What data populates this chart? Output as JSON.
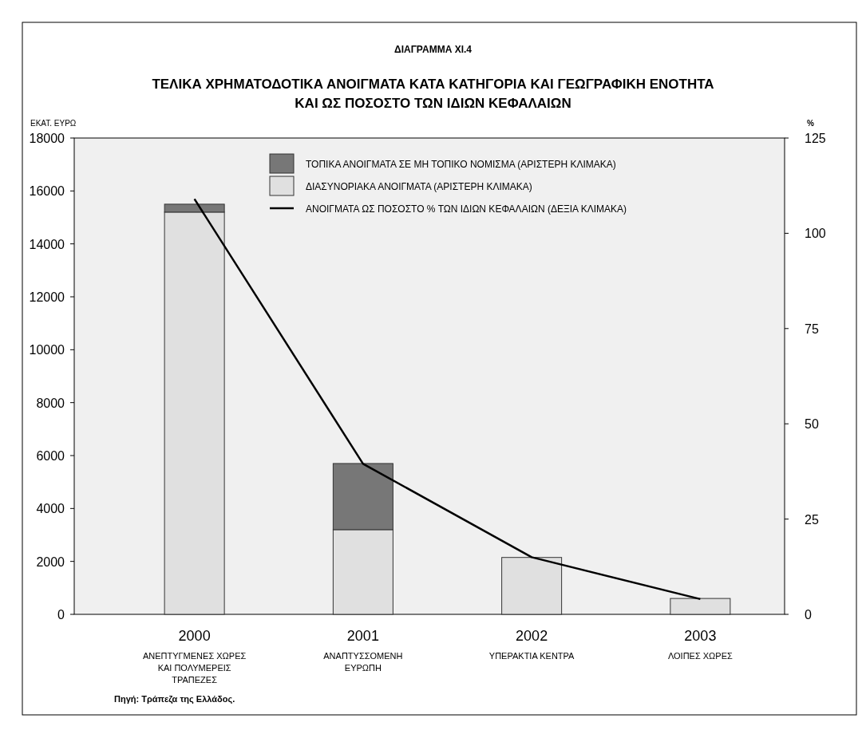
{
  "chart_data": {
    "type": "bar",
    "subtitle": "ΔΙΑΓΡΑΜΜΑ XI.4",
    "title": "ΤΕΛΙΚΑ ΧΡΗΜΑΤΟΔΟΤΙΚΑ ΑΝΟΙΓΜΑΤΑ ΚΑΤΑ ΚΑΤΗΓΟΡΙΑ ΚΑΙ ΓΕΩΓΡΑΦΙΚΗ ΕΝΟΤΗΤΑ\nΚΑΙ ΩΣ ΠΟΣΟΣΤΟ ΤΩΝ ΙΔΙΩΝ ΚΕΦΑΛΑΙΩΝ",
    "ylabel": "ΕΚΑΤ. ΕΥΡΩ",
    "y2label": "%",
    "categories": [
      "2000\nΑΝΕΠΤΥΓΜΕΝΕΣ ΧΩΡΕΣ\nΚΑΙ ΠΟΛΥΜΕΡΕΙΣ\nΤΡΑΠΕΖΕΣ",
      "2001\nΑΝΑΠΤΥΣΣΟΜΕΝΗ\nΕΥΡΩΠΗ",
      "2002\nΥΠΕΡΑΚΤΙΑ ΚΕΝΤΡΑ",
      "2003\nΛΟΙΠΕΣ ΧΩΡΕΣ"
    ],
    "stacked": true,
    "series": [
      {
        "name": "ΔΙΑΣΥΝΟΡΙΑΚΑ ΑΝΟΙΓΜΑΤΑ (ΑΡΙΣΤΕΡΗ ΚΛΙΜΑΚΑ)",
        "color": "#e0e0e0",
        "values": [
          15200,
          3200,
          2150,
          600
        ]
      },
      {
        "name": "ΤΟΠΙΚΑ ΑΝΟΙΓΜΑΤΑ ΣΕ ΜΗ ΤΟΠΙΚΟ ΝΟΜΙΣΜΑ (ΑΡΙΣΤΕΡΗ ΚΛΙΜΑΚΑ)",
        "color": "#777777",
        "values": [
          300,
          2500,
          0,
          0
        ]
      },
      {
        "name": "ΑΝΟΙΓΜΑΤΑ ΩΣ ΠΟΣΟΣΤΟ % ΤΩΝ ΙΔΙΩΝ ΚΕΦΑΛΑΙΩΝ (ΔΕΞΙΑ ΚΛΙΜΑΚΑ)",
        "type": "line",
        "axis": "y2",
        "color": "#000000",
        "values": [
          109,
          39.5,
          15,
          4
        ]
      }
    ],
    "ylim": [
      0,
      18000
    ],
    "yticks": [
      0,
      2000,
      4000,
      6000,
      8000,
      10000,
      12000,
      14000,
      16000,
      18000
    ],
    "y2lim": [
      0,
      125
    ],
    "y2ticks": [
      0,
      25,
      50,
      75,
      100,
      125
    ],
    "legend": "top right",
    "marker": "none",
    "line_style": "solid",
    "annotations": [
      "Πηγή: Τράπεζα της Ελλάδος."
    ]
  }
}
